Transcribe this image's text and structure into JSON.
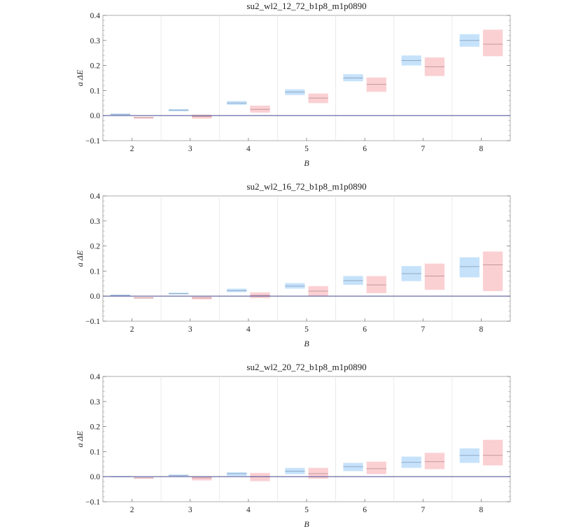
{
  "chart_data": [
    {
      "type": "box",
      "title": "su2_wl2_12_72_b1p8_m1p0890",
      "xlabel": "B",
      "ylabel": "a ΔE",
      "ylim": [
        -0.1,
        0.4
      ],
      "yticks": [
        "−0.1",
        "0.0",
        "0.1",
        "0.2",
        "0.3",
        "0.4"
      ],
      "categories": [
        "2",
        "3",
        "4",
        "5",
        "6",
        "7",
        "8"
      ],
      "series": [
        {
          "name": "blue",
          "color": "#c6e2fb",
          "line": "#8fa8c6",
          "boxes": [
            [
              0.002,
              0.008,
              0.005
            ],
            [
              0.017,
              0.026,
              0.022
            ],
            [
              0.043,
              0.058,
              0.05
            ],
            [
              0.082,
              0.105,
              0.094
            ],
            [
              0.137,
              0.165,
              0.15
            ],
            [
              0.2,
              0.24,
              0.22
            ],
            [
              0.275,
              0.325,
              0.3
            ]
          ]
        },
        {
          "name": "red",
          "color": "#fbd0d3",
          "line": "#c49aa0",
          "boxes": [
            [
              -0.012,
              -0.005,
              -0.008
            ],
            [
              -0.012,
              0.004,
              -0.004
            ],
            [
              0.012,
              0.04,
              0.025
            ],
            [
              0.05,
              0.088,
              0.07
            ],
            [
              0.095,
              0.152,
              0.125
            ],
            [
              0.158,
              0.232,
              0.195
            ],
            [
              0.237,
              0.343,
              0.285
            ]
          ]
        }
      ]
    },
    {
      "type": "box",
      "title": "su2_wl2_16_72_b1p8_m1p0890",
      "xlabel": "B",
      "ylabel": "a ΔE",
      "ylim": [
        -0.1,
        0.4
      ],
      "yticks": [
        "−0.1",
        "0.0",
        "0.1",
        "0.2",
        "0.3",
        "0.4"
      ],
      "categories": [
        "2",
        "3",
        "4",
        "5",
        "6",
        "7",
        "8"
      ],
      "series": [
        {
          "name": "blue",
          "color": "#c6e2fb",
          "line": "#8fa8c6",
          "boxes": [
            [
              0.0,
              0.006,
              0.003
            ],
            [
              0.007,
              0.014,
              0.01
            ],
            [
              0.016,
              0.03,
              0.022
            ],
            [
              0.03,
              0.052,
              0.04
            ],
            [
              0.045,
              0.08,
              0.062
            ],
            [
              0.06,
              0.12,
              0.09
            ],
            [
              0.075,
              0.155,
              0.118
            ]
          ]
        },
        {
          "name": "red",
          "color": "#fbd0d3",
          "line": "#c49aa0",
          "boxes": [
            [
              -0.01,
              -0.004,
              -0.007
            ],
            [
              -0.013,
              -0.002,
              -0.007
            ],
            [
              -0.008,
              0.015,
              0.003
            ],
            [
              0.0,
              0.04,
              0.02
            ],
            [
              0.012,
              0.08,
              0.045
            ],
            [
              0.025,
              0.13,
              0.08
            ],
            [
              0.02,
              0.178,
              0.125
            ]
          ]
        }
      ]
    },
    {
      "type": "box",
      "title": "su2_wl2_20_72_b1p8_m1p0890",
      "xlabel": "B",
      "ylabel": "a ΔE",
      "ylim": [
        -0.1,
        0.4
      ],
      "yticks": [
        "−0.1",
        "0.0",
        "0.1",
        "0.2",
        "0.3",
        "0.4"
      ],
      "categories": [
        "2",
        "3",
        "4",
        "5",
        "6",
        "7",
        "8"
      ],
      "series": [
        {
          "name": "blue",
          "color": "#c6e2fb",
          "line": "#8fa8c6",
          "boxes": [
            [
              -0.001,
              0.002,
              0.0
            ],
            [
              0.002,
              0.008,
              0.005
            ],
            [
              0.003,
              0.018,
              0.012
            ],
            [
              0.01,
              0.035,
              0.022
            ],
            [
              0.022,
              0.055,
              0.04
            ],
            [
              0.035,
              0.08,
              0.057
            ],
            [
              0.055,
              0.113,
              0.085
            ]
          ]
        },
        {
          "name": "red",
          "color": "#fbd0d3",
          "line": "#c49aa0",
          "boxes": [
            [
              -0.008,
              -0.003,
              -0.005
            ],
            [
              -0.015,
              0.002,
              -0.005
            ],
            [
              -0.018,
              0.015,
              0.0
            ],
            [
              -0.008,
              0.035,
              0.012
            ],
            [
              0.01,
              0.06,
              0.032
            ],
            [
              0.03,
              0.095,
              0.06
            ],
            [
              0.045,
              0.147,
              0.085
            ]
          ]
        }
      ]
    }
  ]
}
